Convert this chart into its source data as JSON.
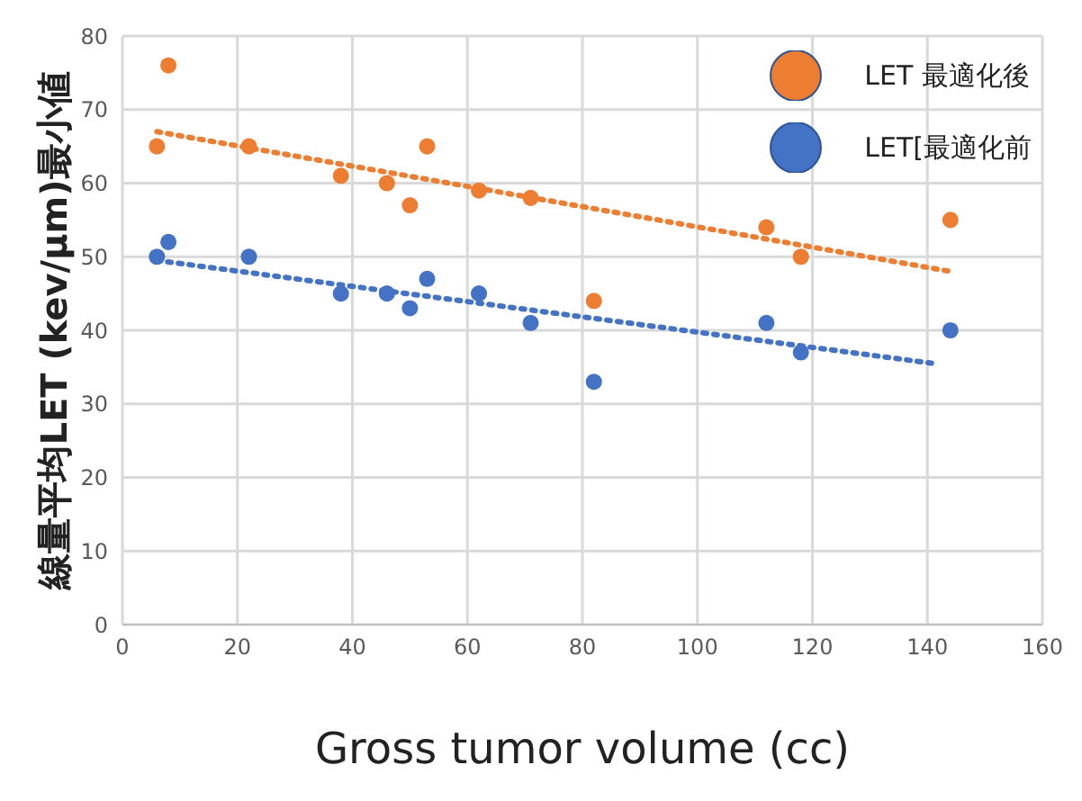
{
  "chart_data": {
    "type": "scatter",
    "xlabel": "Gross tumor volume (cc)",
    "ylabel": "線量平均LET (kev/μm)最小値",
    "xlim": [
      0,
      160
    ],
    "xticks": [
      0,
      20,
      40,
      60,
      80,
      100,
      120,
      140,
      160
    ],
    "ylim": [
      0,
      80
    ],
    "yticks": [
      0,
      10,
      20,
      30,
      40,
      50,
      60,
      70,
      80
    ],
    "grid": true,
    "legend": "top right",
    "marker": "circle",
    "series": [
      {
        "name": "LET 最適化後",
        "color": "#ed7d31",
        "x": [
          6,
          8,
          22,
          38,
          46,
          50,
          53,
          62,
          71,
          82,
          112,
          118,
          144
        ],
        "values": [
          65,
          76,
          65,
          61,
          60,
          57,
          65,
          59,
          58,
          44,
          54,
          50,
          55
        ]
      },
      {
        "name": "LET[最適化前",
        "color": "#4472c4",
        "x": [
          6,
          8,
          22,
          38,
          46,
          50,
          53,
          62,
          71,
          82,
          112,
          118,
          144
        ],
        "values": [
          50,
          52,
          50,
          45,
          45,
          43,
          47,
          45,
          41,
          33,
          41,
          37,
          40
        ]
      },
      {
        "type": "line",
        "color": "#ed7d31",
        "line_style": "dotted",
        "marker": "none",
        "x": [
          6,
          144
        ],
        "values": [
          67,
          48
        ]
      },
      {
        "type": "line",
        "color": "#4472c4",
        "line_style": "dotted",
        "marker": "none",
        "x": [
          6,
          141
        ],
        "values": [
          49.5,
          35.5
        ]
      }
    ]
  }
}
